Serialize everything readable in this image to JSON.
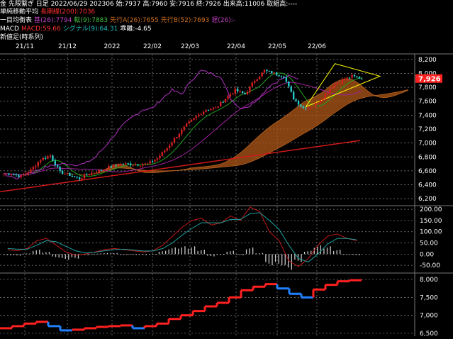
{
  "header": {
    "line1": "金 先限繋ぎ 日足 2022/06/29 202306 始:7937 高:7960 安:7916 終:7926 出来高:11006 取組高:----",
    "line2_label": "単純移動平均",
    "line2_ma": "長期線(200):7036",
    "line3_label": "一目均衡表",
    "line3_base": "基(26):7794",
    "line3_conv": "転(9):7883",
    "line3_spanA": "先行A(26):7655",
    "line3_spanB": "先行B(52):7693",
    "line3_lag": "遅(26):-",
    "line4_label": "MACD",
    "line4_macd": "MACD:59.66",
    "line4_signal": "シグナル(9):64.31",
    "line4_diff": "乖離:-4.65",
    "line5_label": "新値足(時系列)"
  },
  "colors": {
    "bg": "#000000",
    "grid": "#8a8a8a",
    "axis_text": "#ffffff",
    "ma200": "#d01818",
    "base_line": "#a020a0",
    "conv_line": "#20a020",
    "lag_line": "#b030c0",
    "cloud": "#b0581a",
    "candle_up": "#d42020",
    "candle_down": "#28c8c8",
    "macd": "#c01818",
    "signal": "#20a0a0",
    "hist": "#c8c8c8",
    "renko_up": "#ff2020",
    "renko_down": "#2080ff",
    "triangle": "#ffff00",
    "price_tag_bg": "#ff2020",
    "header_ma": "#ff3030",
    "header_base": "#c040c0",
    "header_conv": "#40c040",
    "header_spanA": "#d07020",
    "header_spanB": "#d07020",
    "header_lag": "#c040c0",
    "header_macd": "#ff3030",
    "header_signal": "#20c0c0"
  },
  "chart_data": [
    {
      "type": "candlestick",
      "title": "金 先限繋ぎ 日足",
      "x_tick_labels": [
        "21/11",
        "21/12",
        "2022",
        "22/02",
        "22/03",
        "22/04",
        "22/05",
        "22/06"
      ],
      "y_ticks": [
        6200,
        6400,
        6600,
        6800,
        7000,
        7200,
        7400,
        7600,
        7800,
        8000,
        8200
      ],
      "ylim": [
        6120,
        8280
      ],
      "last_price": "7,926",
      "grid": true,
      "weekly_closes": [
        6560,
        6520,
        6610,
        6760,
        6820,
        6580,
        6540,
        6490,
        6560,
        6600,
        6650,
        6690,
        6700,
        6690,
        6700,
        6780,
        6930,
        7100,
        7260,
        7380,
        7480,
        7500,
        7640,
        7760,
        7700,
        7900,
        8040,
        8000,
        7960,
        7640,
        7500,
        7530,
        7660,
        7820,
        7900,
        7960,
        7926
      ],
      "ma200": {
        "label": "長期線(200)",
        "start": 6300,
        "end": 7036
      },
      "ichimoku_cloud_note": "cloud band shown under price"
    },
    {
      "type": "macd",
      "y_ticks": [
        -50,
        0,
        50,
        100,
        150,
        200
      ],
      "ylim": [
        -75,
        210
      ],
      "macd_line": [
        20,
        15,
        25,
        60,
        70,
        40,
        10,
        -5,
        0,
        10,
        20,
        25,
        20,
        15,
        10,
        15,
        40,
        80,
        120,
        150,
        160,
        130,
        140,
        170,
        150,
        210,
        190,
        100,
        60,
        -30,
        -55,
        -20,
        40,
        80,
        90,
        70,
        60
      ],
      "signal_line": [
        25,
        22,
        22,
        40,
        60,
        55,
        35,
        15,
        5,
        8,
        15,
        20,
        22,
        18,
        14,
        14,
        25,
        50,
        85,
        115,
        140,
        140,
        140,
        155,
        155,
        180,
        185,
        150,
        110,
        40,
        -20,
        -35,
        0,
        45,
        70,
        70,
        64
      ],
      "histogram": [
        -5,
        -7,
        3,
        20,
        10,
        -15,
        -25,
        -20,
        -5,
        2,
        5,
        5,
        -2,
        -3,
        -4,
        1,
        15,
        30,
        35,
        35,
        20,
        -10,
        0,
        15,
        -5,
        30,
        5,
        -50,
        -50,
        -70,
        -35,
        15,
        40,
        35,
        20,
        0,
        -5
      ]
    },
    {
      "type": "step",
      "title": "新値足(時系列)",
      "y_ticks": [
        6500,
        7000,
        7500,
        8000
      ],
      "ylim": [
        6420,
        8120
      ],
      "levels": [
        6640,
        6700,
        6770,
        6820,
        6700,
        6580,
        6600,
        6640,
        6680,
        6700,
        6720,
        6640,
        6700,
        6770,
        6900,
        7000,
        7120,
        7250,
        7350,
        7500,
        7700,
        7800,
        7870,
        7750,
        7600,
        7500,
        7720,
        7850,
        7950,
        7980
      ]
    }
  ]
}
